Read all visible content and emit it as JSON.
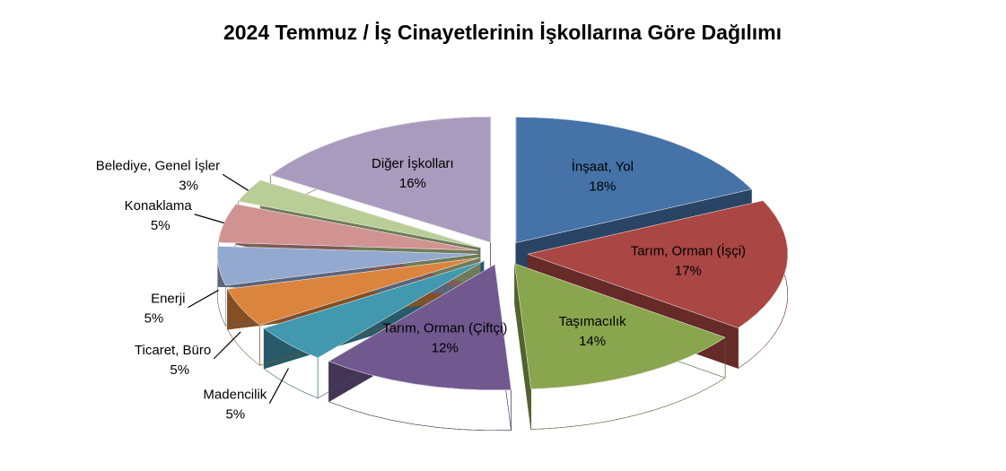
{
  "chart_data": {
    "type": "pie3d",
    "title": "2024 Temmuz / İş Cinayetlerinin İşkollarına Göre Dağılımı",
    "categories": [
      "İnşaat, Yol",
      "Tarım, Orman (İşçi)",
      "Taşımacılık",
      "Tarım, Orman (Çiftçi)",
      "Madencilik",
      "Ticaret, Büro",
      "Enerji",
      "Konaklama",
      "Belediye, Genel İşler",
      "Diğer İşkolları"
    ],
    "values": [
      18,
      17,
      14,
      12,
      5,
      5,
      5,
      5,
      3,
      16
    ],
    "value_labels": [
      "18%",
      "17%",
      "14%",
      "12%",
      "5%",
      "5%",
      "5%",
      "5%",
      "3%",
      "16%"
    ],
    "colors": [
      "#4572a7",
      "#aa4643",
      "#89a54e",
      "#71588f",
      "#4198af",
      "#db843d",
      "#93a9cf",
      "#d19392",
      "#b9cd96",
      "#a99bbd"
    ]
  }
}
